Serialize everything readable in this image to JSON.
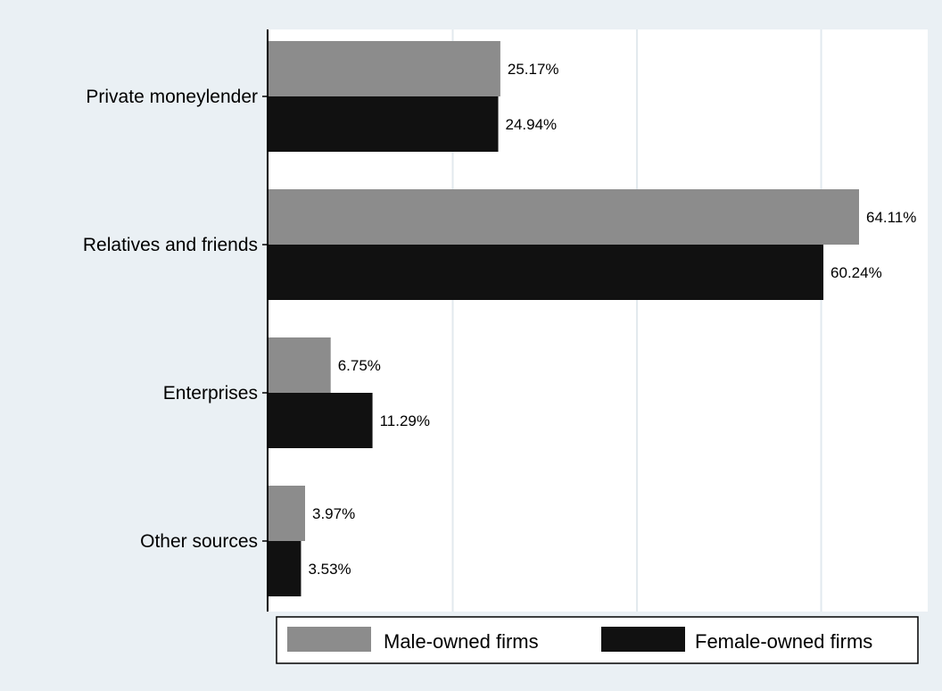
{
  "chart_data": {
    "type": "bar",
    "orientation": "horizontal",
    "title": "",
    "xlabel": "",
    "ylabel": "",
    "categories": [
      "Private moneylender",
      "Relatives and friends",
      "Enterprises",
      "Other sources"
    ],
    "series": [
      {
        "name": "Male-owned firms",
        "values": [
          25.17,
          64.11,
          6.75,
          3.97
        ],
        "labels": [
          "25.17%",
          "64.11%",
          "6.75%",
          "3.97%"
        ],
        "color": "#8c8c8c"
      },
      {
        "name": "Female-owned firms",
        "values": [
          24.94,
          60.24,
          11.29,
          3.53
        ],
        "labels": [
          "24.94%",
          "60.24%",
          "11.29%",
          "3.53%"
        ],
        "color": "#111111"
      }
    ],
    "xlim": [
      0,
      67
    ],
    "grid": true,
    "legend_position": "bottom",
    "colors": {
      "background": "#eaf0f4",
      "plot_area": "#ffffff",
      "gridline": "#e2e9ee",
      "axis": "#000000"
    }
  }
}
